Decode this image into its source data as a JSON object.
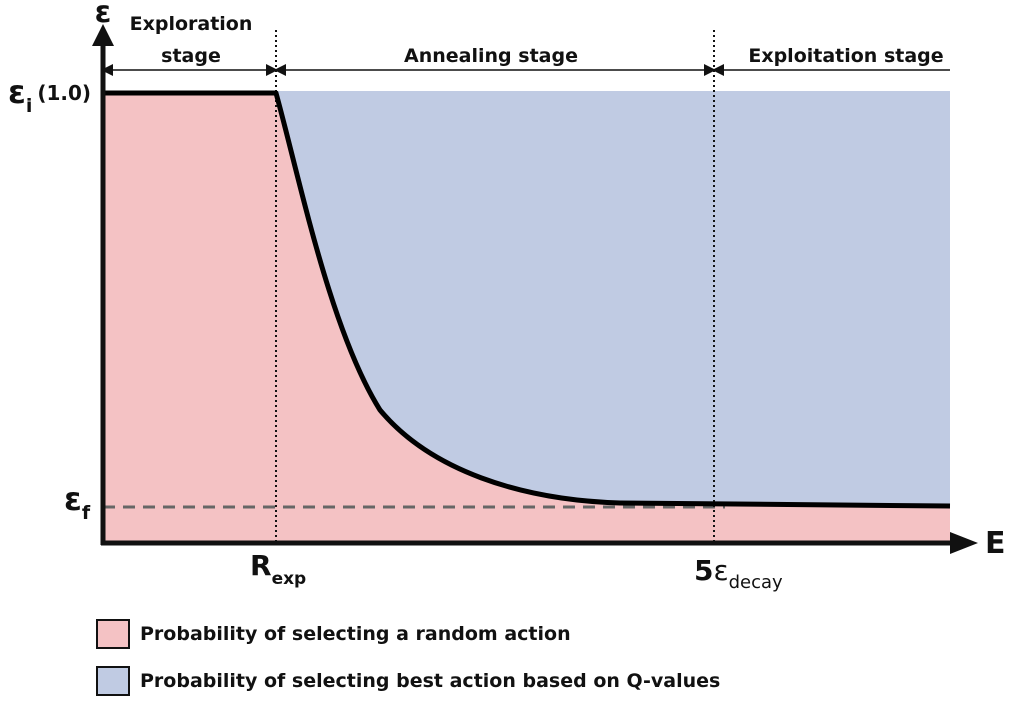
{
  "colors": {
    "random_region": "#f4c2c4",
    "best_region": "#c0cbe3",
    "curve": "#000000",
    "dashed": "#666666"
  },
  "stages": {
    "exploration_line1": "Exploration",
    "exploration_line2": "stage",
    "annealing": "Annealing stage",
    "exploitation": "Exploitation stage"
  },
  "axes": {
    "y_symbol": "ε",
    "x_symbol": "E",
    "y_initial_base": "ε",
    "y_initial_sub": "i",
    "y_initial_value": "(1.0)",
    "y_final_base": "ε",
    "y_final_sub": "f",
    "x_rexp_base": "R",
    "x_rexp_sub": "exp",
    "x_decay_coef": "5",
    "x_decay_base": "ε",
    "x_decay_sub": "decay"
  },
  "legend": [
    {
      "label": "Probability of selecting a random action",
      "color": "#f4c2c4"
    },
    {
      "label": "Probability of selecting best action based on Q-values",
      "color": "#c0cbe3"
    }
  ]
}
